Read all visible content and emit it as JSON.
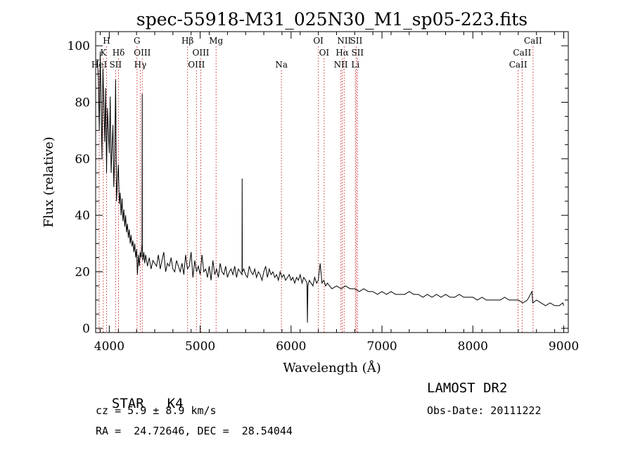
{
  "chart_data": {
    "type": "line",
    "title": "spec-55918-M31_025N30_M1_sp05-223.fits",
    "xlabel": "Wavelength (Å)",
    "ylabel": "Flux (relative)",
    "xlim": [
      3850,
      9050
    ],
    "ylim": [
      -1.5,
      105
    ],
    "xticks": [
      4000,
      5000,
      6000,
      7000,
      8000,
      9000
    ],
    "yticks": [
      0,
      20,
      40,
      60,
      80,
      100
    ],
    "grid": false,
    "series": [
      {
        "x": [
          3870,
          3880,
          3890,
          3900,
          3910,
          3920,
          3930,
          3940,
          3950,
          3960,
          3970,
          3980,
          3990,
          4000,
          4010,
          4020,
          4030,
          4040,
          4050,
          4060,
          4070,
          4080,
          4090,
          4100,
          4110,
          4120,
          4130,
          4140,
          4150,
          4160,
          4170,
          4180,
          4190,
          4200,
          4210,
          4220,
          4230,
          4240,
          4250,
          4260,
          4270,
          4280,
          4290,
          4300,
          4310,
          4320,
          4330,
          4340,
          4350,
          4360,
          4362,
          4364,
          4370,
          4380,
          4390,
          4400,
          4420,
          4440,
          4460,
          4480,
          4500,
          4520,
          4540,
          4560,
          4580,
          4600,
          4620,
          4640,
          4660,
          4680,
          4700,
          4720,
          4740,
          4760,
          4780,
          4800,
          4820,
          4840,
          4860,
          4880,
          4900,
          4920,
          4940,
          4960,
          4980,
          5000,
          5020,
          5040,
          5060,
          5080,
          5100,
          5120,
          5140,
          5160,
          5180,
          5200,
          5220,
          5240,
          5260,
          5280,
          5300,
          5320,
          5340,
          5360,
          5380,
          5400,
          5420,
          5440,
          5460,
          5462,
          5464,
          5480,
          5500,
          5520,
          5540,
          5560,
          5580,
          5600,
          5620,
          5640,
          5660,
          5680,
          5700,
          5720,
          5740,
          5760,
          5780,
          5800,
          5820,
          5840,
          5860,
          5880,
          5900,
          5920,
          5940,
          5960,
          5980,
          6000,
          6020,
          6040,
          6060,
          6080,
          6100,
          6120,
          6140,
          6160,
          6175,
          6180,
          6185,
          6200,
          6220,
          6240,
          6260,
          6280,
          6300,
          6320,
          6340,
          6360,
          6380,
          6400,
          6450,
          6500,
          6550,
          6600,
          6650,
          6700,
          6750,
          6800,
          6850,
          6900,
          6950,
          7000,
          7050,
          7100,
          7150,
          7200,
          7250,
          7300,
          7350,
          7400,
          7450,
          7500,
          7550,
          7600,
          7650,
          7700,
          7750,
          7800,
          7850,
          7900,
          7950,
          8000,
          8050,
          8100,
          8150,
          8200,
          8250,
          8300,
          8350,
          8400,
          8450,
          8500,
          8550,
          8600,
          8650,
          8660,
          8700,
          8750,
          8800,
          8850,
          8900,
          8950,
          8990,
          9000
        ],
        "y": [
          95,
          88,
          70,
          98,
          78,
          60,
          92,
          80,
          66,
          85,
          55,
          78,
          70,
          62,
          82,
          55,
          64,
          72,
          50,
          60,
          88,
          45,
          52,
          58,
          44,
          48,
          40,
          46,
          38,
          42,
          36,
          40,
          34,
          37,
          32,
          35,
          30,
          33,
          29,
          31,
          27,
          30,
          25,
          28,
          19,
          26,
          22,
          27,
          25,
          30,
          83,
          28,
          24,
          27,
          23,
          26,
          22,
          25,
          21,
          24,
          23,
          22,
          26,
          21,
          24,
          27,
          20,
          23,
          22,
          25,
          21,
          20,
          24,
          22,
          20,
          23,
          19,
          26,
          21,
          22,
          27,
          18,
          24,
          20,
          22,
          19,
          26,
          20,
          21,
          18,
          22,
          17,
          24,
          19,
          21,
          18,
          23,
          20,
          19,
          22,
          18,
          20,
          21,
          19,
          22,
          18,
          21,
          20,
          19,
          53,
          20,
          21,
          19,
          18,
          22,
          20,
          19,
          21,
          18,
          20,
          19,
          17,
          20,
          22,
          18,
          21,
          19,
          20,
          18,
          19,
          17,
          20,
          18,
          19,
          17,
          18,
          19,
          17,
          18,
          16,
          18,
          17,
          19,
          16,
          18,
          17,
          16,
          2,
          15,
          17,
          16,
          15,
          18,
          16,
          17,
          23,
          16,
          17,
          15,
          16,
          14,
          15,
          14,
          15,
          14,
          14,
          13,
          14,
          13,
          13,
          12,
          13,
          12,
          13,
          12,
          12,
          12,
          13,
          12,
          12,
          11,
          12,
          11,
          12,
          11,
          12,
          11,
          11,
          12,
          11,
          11,
          11,
          10,
          11,
          10,
          10,
          10,
          10,
          11,
          10,
          10,
          10,
          9,
          10,
          13,
          9,
          10,
          9,
          8,
          9,
          8,
          8,
          9,
          8
        ]
      }
    ],
    "line_markers": [
      {
        "label": "H",
        "wavelength": 3970,
        "row": 1
      },
      {
        "label": "K",
        "wavelength": 3934,
        "row": 2
      },
      {
        "label": "HeI",
        "wavelength": 3889,
        "row": 3
      },
      {
        "label": "Hδ",
        "wavelength": 4102,
        "row": 2
      },
      {
        "label": "SII",
        "wavelength": 4069,
        "row": 3
      },
      {
        "label": "G",
        "wavelength": 4305,
        "row": 1
      },
      {
        "label": "OIII",
        "wavelength": 4363,
        "row": 2
      },
      {
        "label": "Hγ",
        "wavelength": 4341,
        "row": 3
      },
      {
        "label": "Hβ",
        "wavelength": 4861,
        "row": 1
      },
      {
        "label": "OIII",
        "wavelength": 5007,
        "row": 2
      },
      {
        "label": "OIII",
        "wavelength": 4959,
        "row": 3
      },
      {
        "label": "Mg",
        "wavelength": 5175,
        "row": 1
      },
      {
        "label": "Na",
        "wavelength": 5894,
        "row": 3
      },
      {
        "label": "OI",
        "wavelength": 6300,
        "row": 1
      },
      {
        "label": "OI",
        "wavelength": 6364,
        "row": 2
      },
      {
        "label": "NII",
        "wavelength": 6584,
        "row": 1
      },
      {
        "label": "SII",
        "wavelength": 6717,
        "row": 1
      },
      {
        "label": "Hα",
        "wavelength": 6563,
        "row": 2
      },
      {
        "label": "SII",
        "wavelength": 6731,
        "row": 2
      },
      {
        "label": "NII",
        "wavelength": 6548,
        "row": 3
      },
      {
        "label": "Li",
        "wavelength": 6708,
        "row": 3
      },
      {
        "label": "CaII",
        "wavelength": 8662,
        "row": 1
      },
      {
        "label": "CaII",
        "wavelength": 8542,
        "row": 2
      },
      {
        "label": "CaII",
        "wavelength": 8498,
        "row": 3
      }
    ],
    "line_colors": {
      "spectrum": "#000000",
      "markers": "#d03030"
    }
  },
  "info": {
    "class_label": "STAR",
    "subclass": "K4",
    "survey": "LAMOST DR2",
    "cz": "cz = 5.9 ± 8.9 km/s",
    "obs_date": "Obs-Date: 20111222",
    "coords": "RA =  24.72646, DEC =  28.54044"
  }
}
